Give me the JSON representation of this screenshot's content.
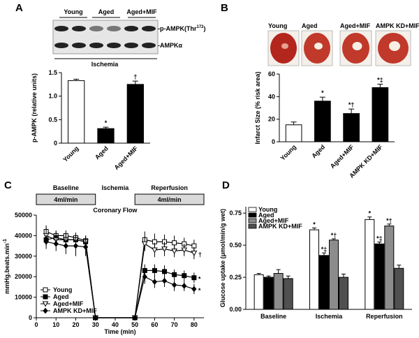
{
  "chart_data": [
    {
      "panel": "A",
      "type": "bar",
      "blot_columns": [
        "Young",
        "Aged",
        "Aged+MIF"
      ],
      "blot_rows": [
        [
          "-p-AMPK(Thr",
          "172",
          ")"
        ],
        [
          "-AMPKα"
        ]
      ],
      "blot_condition": "Ischemia",
      "ylabel": "p-AMPK (relative units)",
      "categories": [
        "Young",
        "Aged",
        "Aged+MIF"
      ],
      "values": [
        1.33,
        0.31,
        1.25
      ],
      "errors": [
        0.03,
        0.03,
        0.07
      ],
      "colors": [
        "#ffffff",
        "#000000",
        "#000000"
      ],
      "annotations": [
        null,
        "*",
        "†"
      ],
      "ylim": [
        0,
        1.5
      ],
      "yticks": [
        0,
        0.5,
        {
          "value": 1,
          "label": "1.0"
        },
        1.5
      ]
    },
    {
      "panel": "B",
      "type": "bar",
      "image_labels": [
        "Young",
        "Aged",
        "Aged+MIF",
        "AMPK KD+MIF"
      ],
      "ylabel": "Infarct Size (% risk area)",
      "categories": [
        "Young",
        "Aged",
        "Aged+MIF",
        "AMPK KD+MIF"
      ],
      "values": [
        15,
        36,
        25,
        48
      ],
      "errors": [
        2.5,
        3.5,
        4,
        3
      ],
      "colors": [
        "#ffffff",
        "#000000",
        "#000000",
        "#000000"
      ],
      "annotations": [
        null,
        "*",
        "*†",
        "*‡"
      ],
      "ylim": [
        0,
        60
      ],
      "yticks": [
        0,
        20,
        40,
        60
      ]
    },
    {
      "panel": "C",
      "type": "line",
      "protocol": {
        "phases": [
          "Baseline",
          "Ischemia",
          "Reperfusion"
        ],
        "flows": [
          "4ml/min",
          "4ml/min"
        ],
        "caption": "Coronary Flow"
      },
      "ylabel": [
        "mmHg.beats.min",
        "-1"
      ],
      "xlabel": "Time (min)",
      "x": [
        5,
        10,
        15,
        20,
        25,
        30,
        50,
        55,
        60,
        65,
        70,
        75,
        80
      ],
      "series": [
        {
          "name": "Young",
          "marker": "open-square",
          "values": [
            42000,
            40000,
            40000,
            39000,
            37500,
            0,
            0,
            38000,
            37000,
            37000,
            36500,
            36000,
            35000
          ],
          "errors": [
            3000,
            2500,
            2500,
            2500,
            2500,
            0,
            0,
            4000,
            4000,
            3500,
            3500,
            3000,
            3000
          ],
          "end_annotation": null
        },
        {
          "name": "Aged",
          "marker": "filled-square",
          "values": [
            38000,
            39000,
            38000,
            38000,
            37000,
            0,
            0,
            23000,
            23000,
            22500,
            21000,
            20500,
            19500
          ],
          "errors": [
            3000,
            3000,
            3000,
            3000,
            3000,
            0,
            0,
            3000,
            3000,
            3000,
            2500,
            2500,
            2500
          ],
          "end_annotation": "*"
        },
        {
          "name": "Aged+MIF",
          "marker": "open-triangle-down",
          "values": [
            40000,
            38000,
            38000,
            38000,
            37000,
            0,
            0,
            36000,
            33000,
            33500,
            32500,
            33000,
            31500
          ],
          "errors": [
            4000,
            3000,
            3000,
            3000,
            3000,
            0,
            0,
            3500,
            3500,
            3500,
            3000,
            3000,
            3000
          ],
          "end_annotation": "†"
        },
        {
          "name": "AMPK KD+MIF",
          "marker": "filled-diamond",
          "values": [
            37000,
            36000,
            35000,
            35000,
            34500,
            0,
            0,
            20000,
            17500,
            18000,
            16000,
            15500,
            14000
          ],
          "errors": [
            3500,
            3500,
            4000,
            5000,
            4500,
            0,
            0,
            3500,
            3000,
            3000,
            3000,
            2500,
            2500
          ],
          "end_annotation": "*"
        }
      ],
      "legend": "lower left",
      "xlim": [
        0,
        85
      ],
      "xticks": [
        0,
        10,
        20,
        30,
        40,
        50,
        60,
        70,
        80
      ],
      "ylim": [
        0,
        50000
      ],
      "yticks": [
        0,
        10000,
        20000,
        30000,
        40000,
        50000
      ]
    },
    {
      "panel": "D",
      "type": "grouped_bar",
      "ylabel": "Glucose uptake (μmol/min/g wet)",
      "categories": [
        "Baseline",
        "Ischemia",
        "Reperfusion"
      ],
      "series": [
        {
          "name": "Young",
          "color": "#ffffff",
          "values": [
            0.27,
            0.62,
            0.7
          ],
          "errors": [
            0.01,
            0.015,
            0.02
          ],
          "annotations": [
            null,
            "*",
            "*"
          ]
        },
        {
          "name": "Aged",
          "color": "#000000",
          "values": [
            0.25,
            0.42,
            0.51
          ],
          "errors": [
            0.01,
            0.02,
            0.015
          ],
          "annotations": [
            null,
            "*‡",
            "*‡"
          ]
        },
        {
          "name": "Aged+MIF",
          "color": "#8c8c8c",
          "values": [
            0.28,
            0.54,
            0.65
          ],
          "errors": [
            0.03,
            0.01,
            0.015
          ],
          "annotations": [
            null,
            "*†",
            "*†"
          ]
        },
        {
          "name": "AMPK KD+MIF",
          "color": "#505050",
          "values": [
            0.24,
            0.25,
            0.32
          ],
          "errors": [
            0.02,
            0.025,
            0.025
          ],
          "annotations": [
            null,
            null,
            null
          ]
        }
      ],
      "legend": "upper left",
      "ylim": [
        0,
        0.8
      ],
      "yticks": [
        {
          "value": 0,
          "label": "0.00"
        },
        0.25,
        {
          "value": 0.5,
          "label": "0.50"
        },
        0.75
      ]
    }
  ]
}
